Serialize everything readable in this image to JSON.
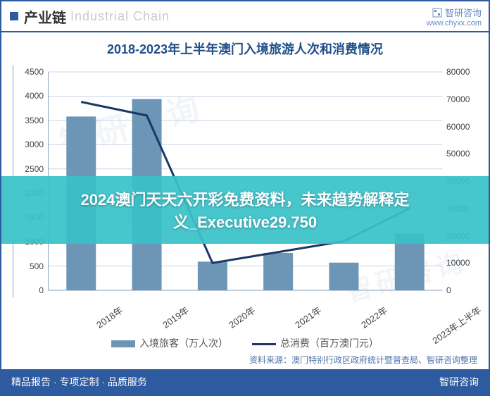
{
  "header": {
    "title_cn": "产业链",
    "title_en": "Industrial Chain"
  },
  "brand": {
    "name": "智研咨询",
    "url": "www.chyxx.com"
  },
  "chart": {
    "type": "bar+line",
    "title": "2018-2023年上半年澳门入境旅游人次和消费情况",
    "categories": [
      "2018年",
      "2019年",
      "2020年",
      "2021年",
      "2022年",
      "2023年上半年"
    ],
    "bar_label": "入境旅客（万人次）",
    "line_label": "总消费（百万澳门元）",
    "bar_values": [
      3580,
      3940,
      590,
      770,
      570,
      1170
    ],
    "line_values": [
      69000,
      64000,
      10000,
      14000,
      18000,
      30000
    ],
    "y_left": {
      "min": 0,
      "max": 4500,
      "step": 500
    },
    "y_right": {
      "min": 0,
      "max": 80000,
      "step": 10000
    },
    "bar_color": "#6d95b5",
    "line_color": "#1a3766",
    "grid_color": "#c8d4e4",
    "border_color": "#8aa0bd",
    "background_color": "#ffffff",
    "title_color": "#204f8a",
    "title_fontsize": 18,
    "label_fontsize": 13,
    "tick_fontsize": 12,
    "bar_width_ratio": 0.45,
    "line_width": 3
  },
  "overlay": {
    "line1": "2024澳门天天六开彩免费资料，未来趋势解释定",
    "line2": "义_Executive29.750",
    "bg": "#3ac2c9"
  },
  "source": "资料来源：澳门特别行政区政府统计暨普查局、智研咨询整理",
  "footer": {
    "left": "精品报告 · 专项定制 · 品质服务",
    "right": "智研咨询"
  },
  "watermark": "智研咨询"
}
